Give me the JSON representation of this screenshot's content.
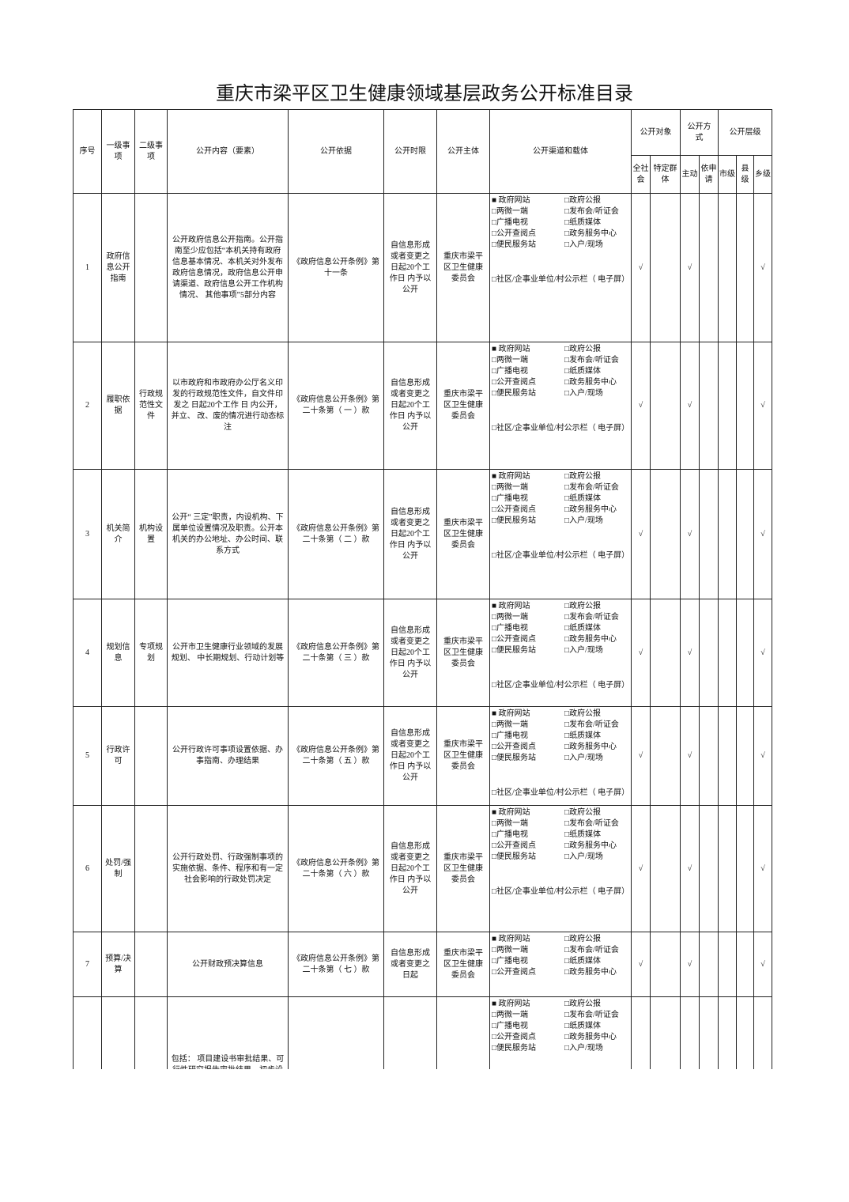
{
  "header": {
    "title": "重庆市梁平区卫生健康领域基层政务公开标准目录"
  },
  "table": {
    "columns": {
      "no": "序号",
      "level1": "一级事项",
      "level2": "二级事项",
      "content": "公开内容（要素）",
      "basis": "公开依据",
      "time": "公开时限",
      "subject": "公开主体",
      "channels": "公开渠道和载体",
      "audience": "公开对象",
      "audience_all": "全社会",
      "audience_specific": "特定群体",
      "method": "公开方式",
      "method_active": "主动",
      "method_request": "依申请",
      "level": "公开层级",
      "level_city": "市级",
      "level_county": "县级",
      "level_township": "乡级"
    },
    "rows": [
      {
        "no": "1",
        "level1": "政府信息公开指南",
        "content": "公开政府信息公开指南。公开指南至少应包括“本机关持有政府信息基本情况、本机关对外发布政府信息情况，政府信息公开申请渠道、政府信息公开工作机构情况、 其他事项”5部分内容",
        "basis": "《政府信息公开条例》第十一条",
        "time": "自信息形成或者变更之日起20个工作日 内予以公开",
        "subject": "重庆市梁平区卫生健康委员会",
        "channels_left": [
          "■ 政府网站",
          "□两微一端",
          "□广播电视",
          "□公开查阅点",
          "□便民服务站"
        ],
        "channels_right": [
          "□政府公报",
          "□发布会/听证会",
          "□纸质媒体",
          "□政务服务中心",
          "□入户/现场"
        ],
        "channels_extra": "□社区/企事业单位/村公示栏（ 电子屏）",
        "audience_all": "√",
        "method_active": "√",
        "level_township": "√"
      },
      {
        "no": "2",
        "level1": "履职依据",
        "level2": "行政规范性文件",
        "content": "以市政府和市政府办公厅名义印发的行政规范性文件，自文件印发之 日起20个工作 日 内公开， 并立、 改、废的情况进行动态标注",
        "basis": "《政府信息公开条例》第二十条第（ 一 ）款",
        "time": "自信息形成或者变更之日起20个工作日 内予以公开",
        "subject": "重庆市梁平区卫生健康委员会",
        "channels_left": [
          "■ 政府网站",
          "□两微一端",
          "□广播电视",
          "□公开查阅点",
          "□便民服务站"
        ],
        "channels_right": [
          "□政府公报",
          "□发布会/听证会",
          "□纸质媒体",
          "□政务服务中心",
          "□入户/现场"
        ],
        "channels_extra": "□社区/企事业单位/村公示栏（ 电子屏）",
        "audience_all": "√",
        "method_active": "√",
        "level_township": "√"
      },
      {
        "no": "3",
        "level1": "机关简介",
        "level2": "机构设置",
        "content": "公开“ 三定”职责，内设机构、下属单位设置情况及职责。公开本机关的办公地址、办公时间、联系方式",
        "basis": "《政府信息公开条例》第二十条第（ 二 ）款",
        "time": "自信息形成或者变更之日起20个工作日 内予以公开",
        "subject": "重庆市梁平区卫生健康委员会",
        "channels_left": [
          "■ 政府网站",
          "□两微一端",
          "□广播电视",
          "□公开查阅点",
          "□便民服务站"
        ],
        "channels_right": [
          "□政府公报",
          "□发布会/听证会",
          "□纸质媒体",
          "□政务服务中心",
          "□入户/现场"
        ],
        "channels_extra": "□社区/企事业单位/村公示栏（ 电子屏）",
        "audience_all": "√",
        "method_active": "√",
        "level_township": "√"
      },
      {
        "no": "4",
        "level1": "规划信息",
        "level2": "专项规划",
        "content": "公开市卫生健康行业领域的发展规划、 中长期规划、行动计划等",
        "basis": "《政府信息公开条例》第二十条第（ 三 ）款",
        "time": "自信息形成或者变更之日起20个工作日 内予以公开",
        "subject": "重庆市梁平区卫生健康委员会",
        "channels_left": [
          "■ 政府网站",
          "□两微一端",
          "□广播电视",
          "□公开查阅点",
          "□便民服务站"
        ],
        "channels_right": [
          "□政府公报",
          "□发布会/听证会",
          "□纸质媒体",
          "□政务服务中心",
          "□入户/现场"
        ],
        "channels_extra": "□社区/企事业单位/村公示栏（ 电子屏）",
        "audience_all": "√",
        "method_active": "√",
        "level_township": "√"
      },
      {
        "no": "5",
        "level1": "行政许可",
        "content": "公开行政许可事项设置依据、办事指南、办理结果",
        "basis": "《政府信息公开条例》第二十条第（ 五 ）款",
        "time": "自信息形成或者变更之日起20个工作日 内予以公开",
        "subject": "重庆市梁平区卫生健康委员会",
        "channels_left": [
          "■ 政府网站",
          "□两微一端",
          "□广播电视",
          "□公开查阅点",
          "□便民服务站"
        ],
        "channels_right": [
          "□政府公报",
          "□发布会/听证会",
          "□纸质媒体",
          "□政务服务中心",
          "□入户/现场"
        ],
        "channels_extra": "□社区/企事业单位/村公示栏（ 电子屏）",
        "audience_all": "√",
        "method_active": "√",
        "level_township": "√"
      },
      {
        "no": "6",
        "level1": "处罚/强制",
        "content": "公开行政处罚、行政强制事项的实施依据、条件、程序和有一定社会影响的行政处罚决定",
        "basis": "《政府信息公开条例》第二十条第（ 六 ）款",
        "time": "自信息形成或者变更之日起20个工作日 内予以公开",
        "subject": "重庆市梁平区卫生健康委员会",
        "channels_left": [
          "■ 政府网站",
          "□两微一端",
          "□广播电视",
          "□公开查阅点",
          "□便民服务站"
        ],
        "channels_right": [
          "□政府公报",
          "□发布会/听证会",
          "□纸质媒体",
          "□政务服务中心",
          "□入户/现场"
        ],
        "channels_extra": "□社区/企事业单位/村公示栏（ 电子屏）",
        "audience_all": "√",
        "method_active": "√",
        "level_township": "√"
      },
      {
        "no": "7",
        "level1": "预算/决算",
        "content": "公开财政预决算信息",
        "basis": "《政府信息公开条例》第二十条第（ 七 ）款",
        "time": "自信息形成或者变更之日起",
        "subject": "重庆市梁平区卫生健康委员会",
        "channels_left": [
          "■ 政府网站",
          "□两微一端",
          "□广播电视",
          "□公开查阅点"
        ],
        "channels_right": [
          "□政府公报",
          "□发布会/听证会",
          "□纸质媒体",
          "□政务服务中心"
        ],
        "audience_all": "√",
        "method_active": "√",
        "level_township": "√"
      },
      {
        "content": "包括： 项目建设书审批结果、可行性研究报告审批结果、初步设计文件审批结果、 项目核准结果、节能审查意见、建设",
        "channels_left": [
          "■ 政府网站",
          "□两微一端",
          "□广播电视",
          "□公开查阅点",
          "□便民服务站"
        ],
        "channels_right": [
          "□政府公报",
          "□发布会/听证会",
          "□纸质媒体",
          "□政务服务中心",
          "□入户/现场"
        ]
      }
    ]
  }
}
